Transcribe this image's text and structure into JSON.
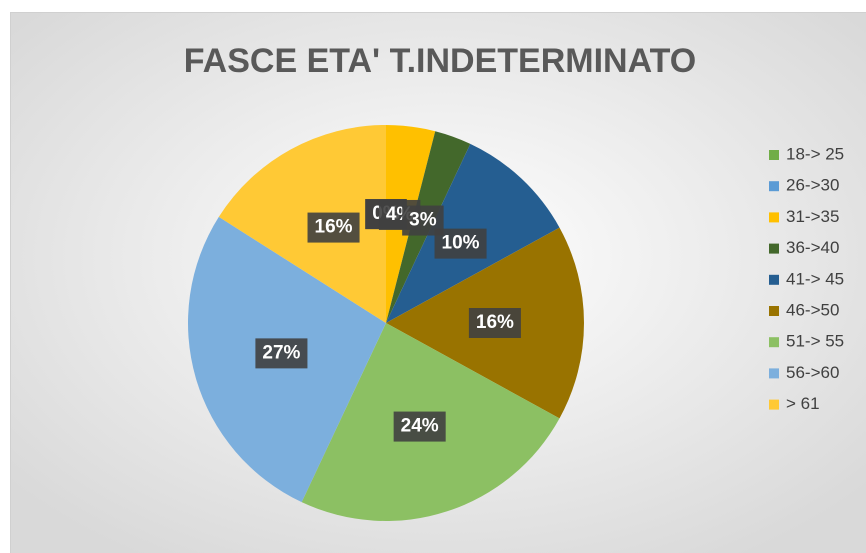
{
  "chart_data": {
    "type": "pie",
    "title": "FASCE ETA' T.INDETERMINATO",
    "categories": [
      "18-> 25",
      "26->30",
      "31->35",
      "36->40",
      "41-> 45",
      "46->50",
      "51-> 55",
      "56->60",
      "> 61"
    ],
    "values": [
      0,
      0,
      4,
      3,
      10,
      16,
      24,
      27,
      16
    ],
    "value_labels": [
      "0%",
      "0%",
      "4%",
      "3%",
      "10%",
      "16%",
      "24%",
      "27%",
      "16%"
    ],
    "colors": [
      "#70ad47",
      "#5b9bd5",
      "#ffc000",
      "#43682b",
      "#255e91",
      "#997300",
      "#8cc063",
      "#7cafdd",
      "#ffc935"
    ],
    "legend": "right"
  }
}
